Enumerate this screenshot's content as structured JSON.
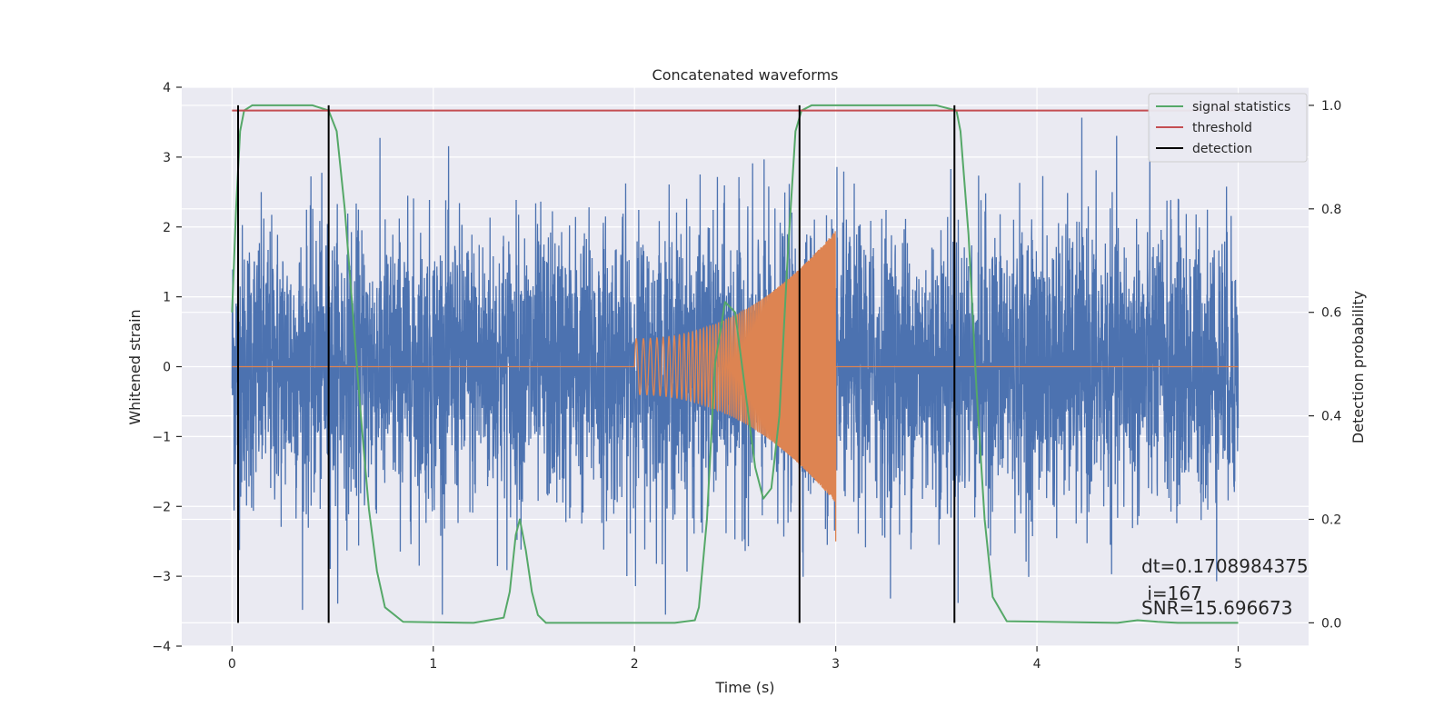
{
  "chart_data": {
    "type": "line",
    "title": "Concatenated waveforms",
    "xlabel": "Time (s)",
    "ylabel": "Whitened strain",
    "y2label": "Detection probability",
    "xlim": [
      -0.25,
      5.35
    ],
    "ylim": [
      -4,
      4
    ],
    "y2lim": [
      -0.045,
      1.035
    ],
    "x_ticks": [
      0,
      1,
      2,
      3,
      4,
      5
    ],
    "y_ticks": [
      -4,
      -3,
      -2,
      -1,
      0,
      1,
      2,
      3,
      4
    ],
    "y2_ticks": [
      0.0,
      0.2,
      0.4,
      0.6,
      0.8,
      1.0
    ],
    "x_tick_labels": [
      "0",
      "1",
      "2",
      "3",
      "4",
      "5"
    ],
    "y_tick_labels": [
      "−4",
      "−3",
      "−2",
      "−1",
      "0",
      "1",
      "2",
      "3",
      "4"
    ],
    "y2_tick_labels": [
      "0.0",
      "0.2",
      "0.4",
      "0.6",
      "0.8",
      "1.0"
    ],
    "grid": true,
    "legend_position": "top-right",
    "colors": {
      "background": "#eaeaf2",
      "noise": "#4c72b0",
      "injected_signal": "#dd8452",
      "signal_statistics": "#55a868",
      "threshold": "#c44e52",
      "detection": "#000000"
    },
    "series": {
      "noise": {
        "x_range": [
          0,
          5
        ],
        "amplitude_range": [
          -3.55,
          3.65
        ],
        "typical_spread": 1.0
      },
      "injected_signal": {
        "chirp_start": 2.0,
        "chirp_end": 3.0,
        "start_amplitude": 0.4,
        "end_amplitude": 1.95,
        "min_amplitude": -2.5
      },
      "signal_statistics": {
        "name": "signal statistics",
        "x": [
          0,
          0.02,
          0.04,
          0.06,
          0.1,
          0.2,
          0.4,
          0.48,
          0.52,
          0.56,
          0.6,
          0.64,
          0.68,
          0.72,
          0.76,
          0.85,
          1.2,
          1.35,
          1.38,
          1.41,
          1.43,
          1.46,
          1.49,
          1.52,
          1.56,
          1.7,
          2.2,
          2.3,
          2.32,
          2.36,
          2.4,
          2.45,
          2.5,
          2.55,
          2.6,
          2.64,
          2.68,
          2.72,
          2.76,
          2.8,
          2.83,
          2.88,
          3.0,
          3.5,
          3.6,
          3.62,
          3.66,
          3.7,
          3.74,
          3.78,
          3.85,
          4.4,
          4.5,
          4.6,
          4.7,
          5.0
        ],
        "y": [
          0.6,
          0.8,
          0.95,
          0.99,
          1.0,
          1.0,
          1.0,
          0.99,
          0.95,
          0.8,
          0.6,
          0.4,
          0.22,
          0.1,
          0.03,
          0.002,
          0.0,
          0.01,
          0.06,
          0.17,
          0.2,
          0.14,
          0.06,
          0.015,
          0.0,
          0.0,
          0.0,
          0.005,
          0.03,
          0.2,
          0.5,
          0.62,
          0.6,
          0.45,
          0.3,
          0.24,
          0.26,
          0.4,
          0.7,
          0.95,
          0.99,
          1.0,
          1.0,
          1.0,
          0.99,
          0.95,
          0.75,
          0.45,
          0.2,
          0.05,
          0.003,
          0.0,
          0.005,
          0.002,
          0.0,
          0.0
        ]
      },
      "threshold": {
        "name": "threshold",
        "x": [
          0,
          5
        ],
        "y": [
          0.99,
          0.99
        ]
      },
      "detection": {
        "name": "detection",
        "x": [
          0.03,
          0.48,
          2.82,
          3.59
        ],
        "y_range": [
          0.0,
          1.0
        ]
      }
    },
    "legend": [
      "signal statistics",
      "threshold",
      "detection"
    ],
    "annotations": [
      "dt=0.1708984375",
      " i=167",
      "SNR=15.696673"
    ]
  }
}
